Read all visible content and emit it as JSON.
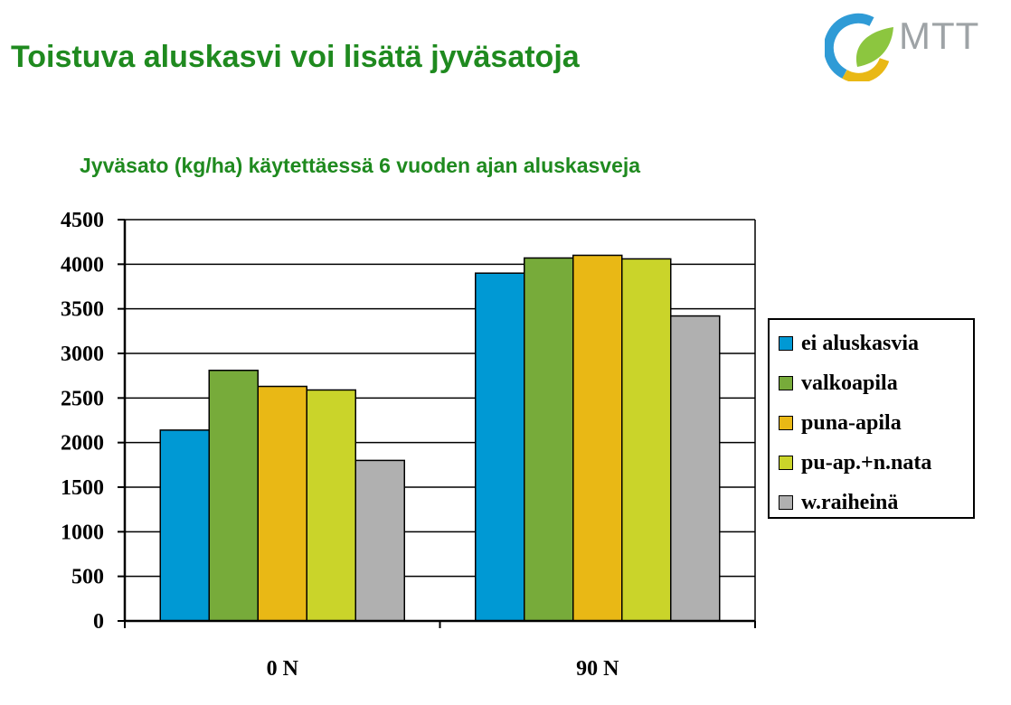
{
  "slide": {
    "title": "Toistuva aluskasvi voi lisätä jyväsatoja"
  },
  "logo": {
    "text": "MTT"
  },
  "chart_data": {
    "type": "bar",
    "title": "Jyväsato (kg/ha) käytettäessä 6 vuoden ajan aluskasveja",
    "categories": [
      "0 N",
      "90 N"
    ],
    "series": [
      {
        "name": "ei aluskasvia",
        "color": "#0099d4",
        "values": [
          2140,
          3900
        ]
      },
      {
        "name": "valkoapila",
        "color": "#77ab3a",
        "values": [
          2810,
          4070
        ]
      },
      {
        "name": "puna-apila",
        "color": "#e9b815",
        "values": [
          2630,
          4100
        ]
      },
      {
        "name": "pu-ap.+n.nata",
        "color": "#cad42a",
        "values": [
          2590,
          4060
        ]
      },
      {
        "name": "w.raiheinä",
        "color": "#b0b0b0",
        "values": [
          1800,
          3420
        ]
      }
    ],
    "ylim": [
      0,
      4500
    ],
    "yticks": [
      "0",
      "500",
      "1000",
      "1500",
      "2000",
      "2500",
      "3000",
      "3500",
      "4000",
      "4500"
    ],
    "grid": true,
    "legend_position": "right"
  }
}
